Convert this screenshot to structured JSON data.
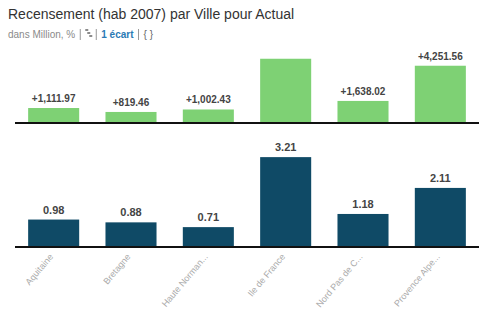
{
  "chart_data": [
    {
      "type": "bar",
      "title": "Recensement (hab 2007) par Ville pour Actual",
      "subtitle": "dans Million, %",
      "annotations": [
        "1 écart",
        "{ }"
      ],
      "categories": [
        "Aquitaine",
        "Bretagne",
        "Haute Norman...",
        "Ile de France",
        "Nord Pas de C...",
        "Provence Alpe..."
      ],
      "values": [
        1111.97,
        819.46,
        1002.43,
        4770,
        1638.02,
        4251.56
      ],
      "value_labels": [
        "+1,111.97",
        "+819.46",
        "+1,002.43",
        null,
        "+1,638.02",
        "+4,251.56"
      ],
      "color": "#7ed174",
      "ylim": [
        0,
        4900
      ],
      "data_labels": true,
      "tick_labels": false
    },
    {
      "type": "bar",
      "categories": [
        "Aquitaine",
        "Bretagne",
        "Haute Norman...",
        "Ile de France",
        "Nord Pas de C...",
        "Provence Alpe..."
      ],
      "values": [
        0.98,
        0.88,
        0.71,
        3.21,
        1.18,
        2.11
      ],
      "color": "#0f4a66",
      "ylim": [
        0,
        4
      ],
      "data_labels": true,
      "tick_labels": "x"
    }
  ]
}
